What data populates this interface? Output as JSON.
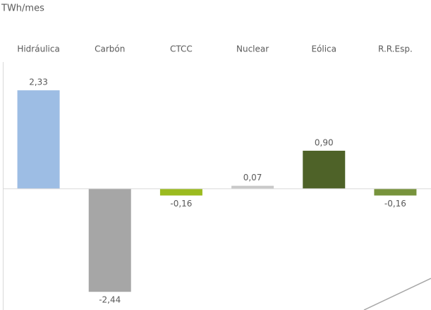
{
  "chart_data": {
    "type": "bar",
    "subtitle": "TWh/mes",
    "categories": [
      "Hidráulica",
      "Carbón",
      "CTCC",
      "Nuclear",
      "Eólica",
      "R.R.Esp."
    ],
    "values": [
      2.33,
      -2.44,
      -0.16,
      0.07,
      0.9,
      -0.16
    ],
    "value_labels": [
      "2,33",
      "-2,44",
      "-0,16",
      "0,07",
      "0,90",
      "-0,16"
    ],
    "colors": [
      "#9dbde4",
      "#a6a6a6",
      "#9bbb1f",
      "#c9c9c9",
      "#4e6228",
      "#77933c"
    ],
    "ylim": [
      -2.87,
      3.0
    ]
  }
}
